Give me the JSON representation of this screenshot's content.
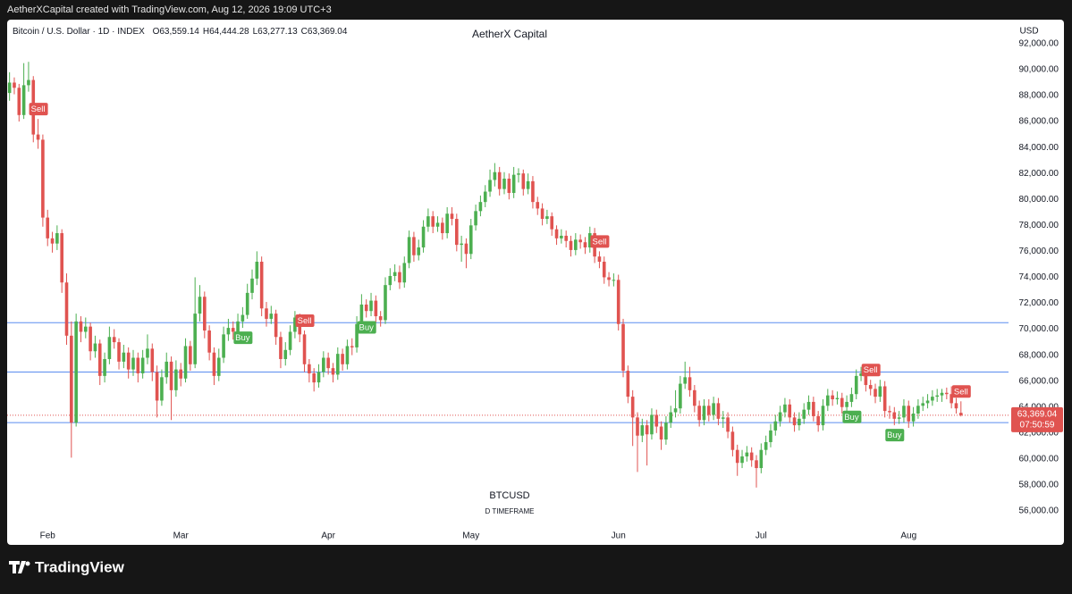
{
  "header": {
    "caption": "AetherXCapital created with TradingView.com, Aug 12, 2026 19:09 UTC+3"
  },
  "footer": {
    "brand": "TradingView"
  },
  "chart_data": {
    "type": "candlestick",
    "title": "AetherX Capital",
    "symbol": "Bitcoin / U.S. Dollar · 1D · INDEX",
    "ohlc_keys": [
      "O",
      "H",
      "L",
      "C"
    ],
    "last_labels": [
      "63,559.14",
      "64,444.28",
      "63,277.13",
      "63,369.04"
    ],
    "currency": "USD",
    "countdown": "07:50:59",
    "watermark": "BTCUSD",
    "watermark_sub": "D TIMEFRAME",
    "up_color": "#4caf50",
    "down_color": "#e05350",
    "level_color": "#5b8def",
    "grid": false,
    "ylim": [
      54760,
      93850
    ],
    "xlim": [
      -0.5,
      210
    ],
    "yticks": [
      {
        "value": 56000,
        "label": "56,000.00"
      },
      {
        "value": 58000,
        "label": "58,000.00"
      },
      {
        "value": 60000,
        "label": "60,000.00"
      },
      {
        "value": 62000,
        "label": "62,000.00"
      },
      {
        "value": 64000,
        "label": "64,000.00"
      },
      {
        "value": 66000,
        "label": "66,000.00"
      },
      {
        "value": 68000,
        "label": "68,000.00"
      },
      {
        "value": 70000,
        "label": "70,000.00"
      },
      {
        "value": 72000,
        "label": "72,000.00"
      },
      {
        "value": 74000,
        "label": "74,000.00"
      },
      {
        "value": 76000,
        "label": "76,000.00"
      },
      {
        "value": 78000,
        "label": "78,000.00"
      },
      {
        "value": 80000,
        "label": "80,000.00"
      },
      {
        "value": 82000,
        "label": "82,000.00"
      },
      {
        "value": 84000,
        "label": "84,000.00"
      },
      {
        "value": 86000,
        "label": "86,000.00"
      },
      {
        "value": 88000,
        "label": "88,000.00"
      },
      {
        "value": 90000,
        "label": "90,000.00"
      },
      {
        "value": 92000,
        "label": "92,000.00"
      }
    ],
    "xticks": [
      {
        "value": 8,
        "label": "Feb"
      },
      {
        "value": 36,
        "label": "Mar"
      },
      {
        "value": 67,
        "label": "Apr"
      },
      {
        "value": 97,
        "label": "May"
      },
      {
        "value": 128,
        "label": "Jun"
      },
      {
        "value": 158,
        "label": "Jul"
      },
      {
        "value": 189,
        "label": "Aug"
      }
    ],
    "levels": [
      70500,
      66700,
      62800
    ],
    "annotations": [
      {
        "text": "Sell",
        "candle": 6
      },
      {
        "text": "Buy",
        "candle": 49
      },
      {
        "text": "Sell",
        "candle": 62
      },
      {
        "text": "Buy",
        "candle": 75
      },
      {
        "text": "Sell",
        "candle": 124
      },
      {
        "text": "Buy",
        "candle": 177
      },
      {
        "text": "Sell",
        "candle": 181
      },
      {
        "text": "Buy",
        "candle": 186
      },
      {
        "text": "Sell",
        "candle": 200
      }
    ],
    "ohlc": [
      [
        88200,
        89800,
        87600,
        89000
      ],
      [
        89000,
        89400,
        88100,
        88600
      ],
      [
        88600,
        88900,
        86000,
        86500
      ],
      [
        86500,
        90500,
        86200,
        88800
      ],
      [
        88800,
        90600,
        88300,
        89200
      ],
      [
        89200,
        89500,
        84400,
        85000
      ],
      [
        85000,
        86200,
        83900,
        84600
      ],
      [
        84600,
        85000,
        77900,
        78600
      ],
      [
        78600,
        79200,
        76400,
        77000
      ],
      [
        77000,
        77500,
        75900,
        76600
      ],
      [
        76600,
        78000,
        76100,
        77400
      ],
      [
        77400,
        77700,
        72800,
        73600
      ],
      [
        73600,
        74300,
        68800,
        69500
      ],
      [
        69500,
        70600,
        60100,
        62800
      ],
      [
        62800,
        71200,
        62500,
        70600
      ],
      [
        70600,
        71000,
        69000,
        69800
      ],
      [
        69800,
        70900,
        69300,
        70200
      ],
      [
        70200,
        70500,
        67600,
        68300
      ],
      [
        68300,
        69500,
        67800,
        68900
      ],
      [
        68900,
        69200,
        65700,
        66400
      ],
      [
        66400,
        68200,
        65900,
        67700
      ],
      [
        67700,
        70200,
        67300,
        69400
      ],
      [
        69400,
        70000,
        68500,
        69000
      ],
      [
        69000,
        69300,
        66900,
        67500
      ],
      [
        67500,
        68800,
        67000,
        68200
      ],
      [
        68200,
        68600,
        66200,
        66900
      ],
      [
        66900,
        68400,
        66400,
        67800
      ],
      [
        67800,
        68200,
        65900,
        66600
      ],
      [
        66600,
        68400,
        66200,
        67800
      ],
      [
        67800,
        69600,
        67300,
        68500
      ],
      [
        68500,
        68900,
        66000,
        66700
      ],
      [
        66700,
        67200,
        63200,
        64500
      ],
      [
        64500,
        66900,
        64100,
        66300
      ],
      [
        66300,
        68200,
        65800,
        67500
      ],
      [
        67500,
        67900,
        63000,
        65300
      ],
      [
        65300,
        67600,
        64800,
        66900
      ],
      [
        66900,
        67400,
        65600,
        66200
      ],
      [
        66200,
        69300,
        65900,
        68700
      ],
      [
        68700,
        69100,
        66800,
        67300
      ],
      [
        67300,
        74000,
        67000,
        71200
      ],
      [
        71200,
        73400,
        70600,
        72500
      ],
      [
        72500,
        72900,
        69300,
        69900
      ],
      [
        69900,
        70300,
        67600,
        68200
      ],
      [
        68200,
        68600,
        65700,
        66400
      ],
      [
        66400,
        68500,
        66000,
        67800
      ],
      [
        67800,
        70200,
        67400,
        69600
      ],
      [
        69600,
        70800,
        69100,
        70100
      ],
      [
        70100,
        70600,
        69200,
        69800
      ],
      [
        69800,
        71200,
        69400,
        70600
      ],
      [
        70600,
        71700,
        70100,
        71100
      ],
      [
        71100,
        73500,
        70800,
        72800
      ],
      [
        72800,
        74600,
        72300,
        73900
      ],
      [
        73900,
        76000,
        73400,
        75200
      ],
      [
        75200,
        75600,
        71000,
        71600
      ],
      [
        71600,
        72100,
        70200,
        70800
      ],
      [
        70800,
        71800,
        70400,
        71200
      ],
      [
        71200,
        71500,
        68800,
        69400
      ],
      [
        69400,
        69800,
        67000,
        67700
      ],
      [
        67700,
        69000,
        67200,
        68400
      ],
      [
        68400,
        70300,
        68000,
        69800
      ],
      [
        69800,
        71400,
        69300,
        70900
      ],
      [
        70900,
        71200,
        69000,
        69600
      ],
      [
        69600,
        69900,
        66700,
        67300
      ],
      [
        67300,
        67700,
        65900,
        66600
      ],
      [
        66600,
        67000,
        65200,
        65900
      ],
      [
        65900,
        67300,
        65500,
        66700
      ],
      [
        66700,
        68300,
        66300,
        67800
      ],
      [
        67800,
        68200,
        66500,
        67000
      ],
      [
        67000,
        67400,
        65900,
        66500
      ],
      [
        66500,
        68600,
        66100,
        68100
      ],
      [
        68100,
        68500,
        66800,
        67300
      ],
      [
        67300,
        69200,
        66900,
        68700
      ],
      [
        68700,
        69300,
        68000,
        68600
      ],
      [
        68600,
        71000,
        68200,
        70400
      ],
      [
        70400,
        72700,
        70000,
        71900
      ],
      [
        71900,
        72300,
        70900,
        71400
      ],
      [
        71400,
        72800,
        71000,
        72200
      ],
      [
        72200,
        72600,
        70500,
        71000
      ],
      [
        71000,
        71400,
        70200,
        70700
      ],
      [
        70700,
        74000,
        70400,
        73400
      ],
      [
        73400,
        74700,
        73000,
        74100
      ],
      [
        74100,
        75000,
        73700,
        74400
      ],
      [
        74400,
        74900,
        73100,
        73600
      ],
      [
        73600,
        75600,
        73200,
        75100
      ],
      [
        75100,
        77600,
        74700,
        77100
      ],
      [
        77100,
        77500,
        75200,
        75700
      ],
      [
        75700,
        76900,
        75300,
        76300
      ],
      [
        76300,
        78400,
        75900,
        77900
      ],
      [
        77900,
        79300,
        77500,
        78700
      ],
      [
        78700,
        79100,
        77400,
        77900
      ],
      [
        77900,
        78700,
        77500,
        78200
      ],
      [
        78200,
        78600,
        76900,
        77400
      ],
      [
        77400,
        79400,
        77000,
        78900
      ],
      [
        78900,
        79400,
        78000,
        78500
      ],
      [
        78500,
        78900,
        76000,
        76500
      ],
      [
        76500,
        77200,
        75200,
        76600
      ],
      [
        76600,
        77000,
        74700,
        75800
      ],
      [
        75800,
        78500,
        75400,
        78000
      ],
      [
        78000,
        79600,
        77600,
        79100
      ],
      [
        79100,
        80300,
        78700,
        79800
      ],
      [
        79800,
        81100,
        79400,
        80600
      ],
      [
        80600,
        82300,
        80200,
        81500
      ],
      [
        81500,
        82800,
        81000,
        82100
      ],
      [
        82100,
        82500,
        80300,
        80800
      ],
      [
        80800,
        82100,
        80400,
        81600
      ],
      [
        81600,
        82000,
        80000,
        80500
      ],
      [
        80500,
        82500,
        80100,
        81900
      ],
      [
        81900,
        82400,
        81300,
        82000
      ],
      [
        82000,
        82300,
        80300,
        80800
      ],
      [
        80800,
        82000,
        80400,
        81400
      ],
      [
        81400,
        81800,
        79300,
        79800
      ],
      [
        79800,
        80200,
        78800,
        79300
      ],
      [
        79300,
        79700,
        78000,
        78500
      ],
      [
        78500,
        79200,
        78100,
        78700
      ],
      [
        78700,
        79000,
        77200,
        77700
      ],
      [
        77700,
        78000,
        76500,
        77000
      ],
      [
        77000,
        77700,
        76600,
        77200
      ],
      [
        77200,
        77600,
        76300,
        76800
      ],
      [
        76800,
        77200,
        75600,
        76100
      ],
      [
        76100,
        77400,
        75700,
        76900
      ],
      [
        76900,
        77300,
        76200,
        76700
      ],
      [
        76700,
        77100,
        75800,
        76300
      ],
      [
        76300,
        77900,
        75900,
        77400
      ],
      [
        77400,
        77800,
        75100,
        75600
      ],
      [
        75600,
        76000,
        74700,
        75200
      ],
      [
        75200,
        75600,
        73500,
        74000
      ],
      [
        74000,
        74400,
        73300,
        73800
      ],
      [
        73800,
        74300,
        73300,
        73800
      ],
      [
        73800,
        74200,
        69900,
        70400
      ],
      [
        70400,
        70800,
        66300,
        66800
      ],
      [
        66800,
        67200,
        64300,
        64800
      ],
      [
        64800,
        65300,
        61000,
        63200
      ],
      [
        63200,
        63600,
        59000,
        61800
      ],
      [
        61800,
        63100,
        61300,
        62600
      ],
      [
        62600,
        63000,
        59500,
        61900
      ],
      [
        61900,
        63900,
        61500,
        63400
      ],
      [
        63400,
        63800,
        62000,
        62500
      ],
      [
        62500,
        62900,
        60700,
        61500
      ],
      [
        61500,
        63300,
        61100,
        62800
      ],
      [
        62800,
        64100,
        62400,
        63600
      ],
      [
        63600,
        65300,
        63200,
        63900
      ],
      [
        63900,
        66400,
        63500,
        65800
      ],
      [
        65800,
        67500,
        65400,
        66300
      ],
      [
        66300,
        67100,
        64800,
        65300
      ],
      [
        65300,
        65700,
        63600,
        64100
      ],
      [
        64100,
        64500,
        62500,
        63000
      ],
      [
        63000,
        64600,
        62600,
        64100
      ],
      [
        64100,
        64600,
        62900,
        63400
      ],
      [
        63400,
        64800,
        63000,
        64300
      ],
      [
        64300,
        64700,
        62600,
        63100
      ],
      [
        63100,
        63700,
        62400,
        63200
      ],
      [
        63200,
        63600,
        61600,
        62100
      ],
      [
        62100,
        62500,
        60200,
        60700
      ],
      [
        60700,
        61100,
        58700,
        59700
      ],
      [
        59700,
        60700,
        59300,
        60200
      ],
      [
        60200,
        61000,
        59800,
        60500
      ],
      [
        60500,
        60900,
        59400,
        59900
      ],
      [
        59900,
        60300,
        57800,
        59300
      ],
      [
        59300,
        61200,
        58900,
        60700
      ],
      [
        60700,
        61800,
        60300,
        61300
      ],
      [
        61300,
        62700,
        60900,
        62200
      ],
      [
        62200,
        63400,
        61800,
        62900
      ],
      [
        62900,
        64100,
        62500,
        63600
      ],
      [
        63600,
        64700,
        63200,
        64200
      ],
      [
        64200,
        64600,
        62800,
        63200
      ],
      [
        63200,
        63600,
        62100,
        62600
      ],
      [
        62600,
        63600,
        62200,
        63100
      ],
      [
        63100,
        64300,
        62700,
        63800
      ],
      [
        63800,
        64900,
        63400,
        64400
      ],
      [
        64400,
        64800,
        62900,
        63300
      ],
      [
        63300,
        63700,
        62100,
        62600
      ],
      [
        62600,
        64600,
        62200,
        64100
      ],
      [
        64100,
        65400,
        63700,
        64900
      ],
      [
        64900,
        65300,
        64100,
        64600
      ],
      [
        64600,
        65200,
        64200,
        64700
      ],
      [
        64700,
        65100,
        63500,
        64000
      ],
      [
        64000,
        64900,
        63600,
        64400
      ],
      [
        64400,
        65500,
        64000,
        65000
      ],
      [
        65000,
        66900,
        64600,
        66400
      ],
      [
        66400,
        67100,
        66000,
        66600
      ],
      [
        66600,
        67000,
        65200,
        65700
      ],
      [
        65700,
        66100,
        64900,
        65400
      ],
      [
        65400,
        65800,
        64300,
        64800
      ],
      [
        64800,
        66100,
        64400,
        65600
      ],
      [
        65600,
        66000,
        63200,
        63700
      ],
      [
        63700,
        64100,
        63100,
        63600
      ],
      [
        63600,
        64000,
        62600,
        63100
      ],
      [
        63100,
        63700,
        62700,
        63200
      ],
      [
        63200,
        64600,
        62800,
        64100
      ],
      [
        64100,
        64500,
        62400,
        62900
      ],
      [
        62900,
        64000,
        62500,
        63500
      ],
      [
        63500,
        64600,
        63100,
        64100
      ],
      [
        64100,
        64800,
        63700,
        64300
      ],
      [
        64300,
        65000,
        63900,
        64500
      ],
      [
        64500,
        65300,
        64100,
        64800
      ],
      [
        64800,
        65400,
        64400,
        64900
      ],
      [
        64900,
        65400,
        64400,
        65100
      ],
      [
        65100,
        65500,
        64600,
        65000
      ],
      [
        65000,
        65600,
        63900,
        64300
      ],
      [
        64300,
        64700,
        63500,
        63900
      ],
      [
        63559.14,
        64444.28,
        63277.13,
        63369.04
      ]
    ]
  }
}
